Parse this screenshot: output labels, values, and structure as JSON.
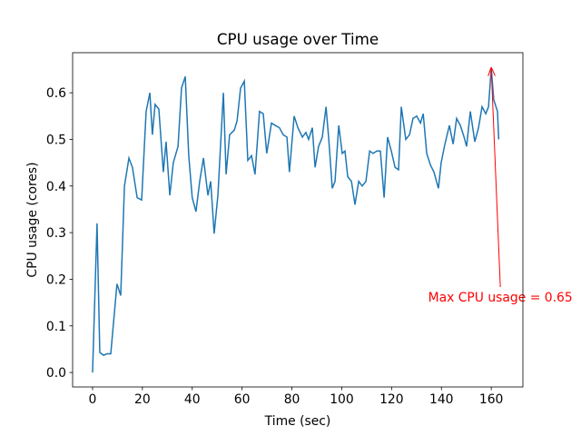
{
  "chart_data": {
    "type": "line",
    "title": "CPU usage over Time",
    "x_label": "Time (sec)",
    "y_label": "CPU usage (cores)",
    "x": [
      0,
      1.8,
      2.9,
      4.4,
      5.8,
      7.3,
      9.8,
      11.3,
      12.8,
      14.6,
      16,
      17.9,
      19.7,
      21.5,
      23,
      24,
      25.1,
      26.6,
      28.4,
      29.5,
      31,
      32.4,
      34.3,
      35.7,
      37.2,
      38.6,
      40,
      41.5,
      43,
      44.5,
      46.3,
      47.4,
      48.8,
      50.3,
      52.5,
      53.6,
      55,
      56.9,
      58,
      59.4,
      60.9,
      62.3,
      63.8,
      65.2,
      67,
      68.5,
      69.9,
      71.8,
      73.3,
      75,
      76.5,
      78,
      79,
      80.9,
      82.4,
      84.2,
      85.6,
      86.7,
      88.2,
      89.3,
      90.7,
      92.2,
      93.7,
      94.8,
      96.2,
      97.3,
      98.8,
      100.2,
      101.3,
      102.4,
      103.9,
      105.3,
      106.8,
      108.2,
      109.7,
      111.2,
      112.6,
      114.1,
      115.5,
      117,
      118.4,
      119.9,
      121.4,
      122.8,
      123.9,
      125.7,
      127.2,
      128.6,
      130.1,
      131.6,
      132.7,
      134.1,
      135.6,
      137,
      138.8,
      139.9,
      141.4,
      143.2,
      144.7,
      146.1,
      147.6,
      149.1,
      150.1,
      151.6,
      153.4,
      154.9,
      156.3,
      157.8,
      158.9,
      160,
      161,
      162.5,
      163
    ],
    "series": [
      {
        "name": "CPU usage",
        "color": "#1f77b4",
        "values": [
          0,
          0.32,
          0.043,
          0.037,
          0.04,
          0.04,
          0.19,
          0.165,
          0.4,
          0.46,
          0.44,
          0.375,
          0.37,
          0.56,
          0.6,
          0.51,
          0.575,
          0.565,
          0.43,
          0.495,
          0.38,
          0.45,
          0.485,
          0.61,
          0.635,
          0.465,
          0.375,
          0.345,
          0.41,
          0.46,
          0.38,
          0.41,
          0.298,
          0.38,
          0.6,
          0.425,
          0.51,
          0.52,
          0.54,
          0.61,
          0.625,
          0.455,
          0.465,
          0.425,
          0.56,
          0.555,
          0.47,
          0.535,
          0.53,
          0.525,
          0.51,
          0.505,
          0.43,
          0.55,
          0.525,
          0.505,
          0.515,
          0.5,
          0.525,
          0.44,
          0.485,
          0.505,
          0.57,
          0.5,
          0.395,
          0.41,
          0.53,
          0.47,
          0.475,
          0.42,
          0.41,
          0.36,
          0.41,
          0.4,
          0.41,
          0.475,
          0.47,
          0.475,
          0.475,
          0.375,
          0.505,
          0.475,
          0.44,
          0.435,
          0.57,
          0.5,
          0.51,
          0.545,
          0.55,
          0.535,
          0.555,
          0.47,
          0.445,
          0.43,
          0.395,
          0.45,
          0.49,
          0.53,
          0.49,
          0.545,
          0.53,
          0.505,
          0.485,
          0.56,
          0.495,
          0.525,
          0.57,
          0.555,
          0.57,
          0.653,
          0.585,
          0.56,
          0.5
        ]
      }
    ],
    "annotation": "Max CPU usage = 0.65",
    "annotation_color": "#ff0000",
    "xlim": [
      -8,
      172.7
    ],
    "ylim": [
      -0.031,
      0.686
    ],
    "xticks": [
      0,
      20,
      40,
      60,
      80,
      100,
      120,
      140,
      160
    ],
    "yticks": [
      {
        "value": 0,
        "label": "0.0"
      },
      0.1,
      0.2,
      0.3,
      0.4,
      0.5,
      0.6
    ]
  }
}
